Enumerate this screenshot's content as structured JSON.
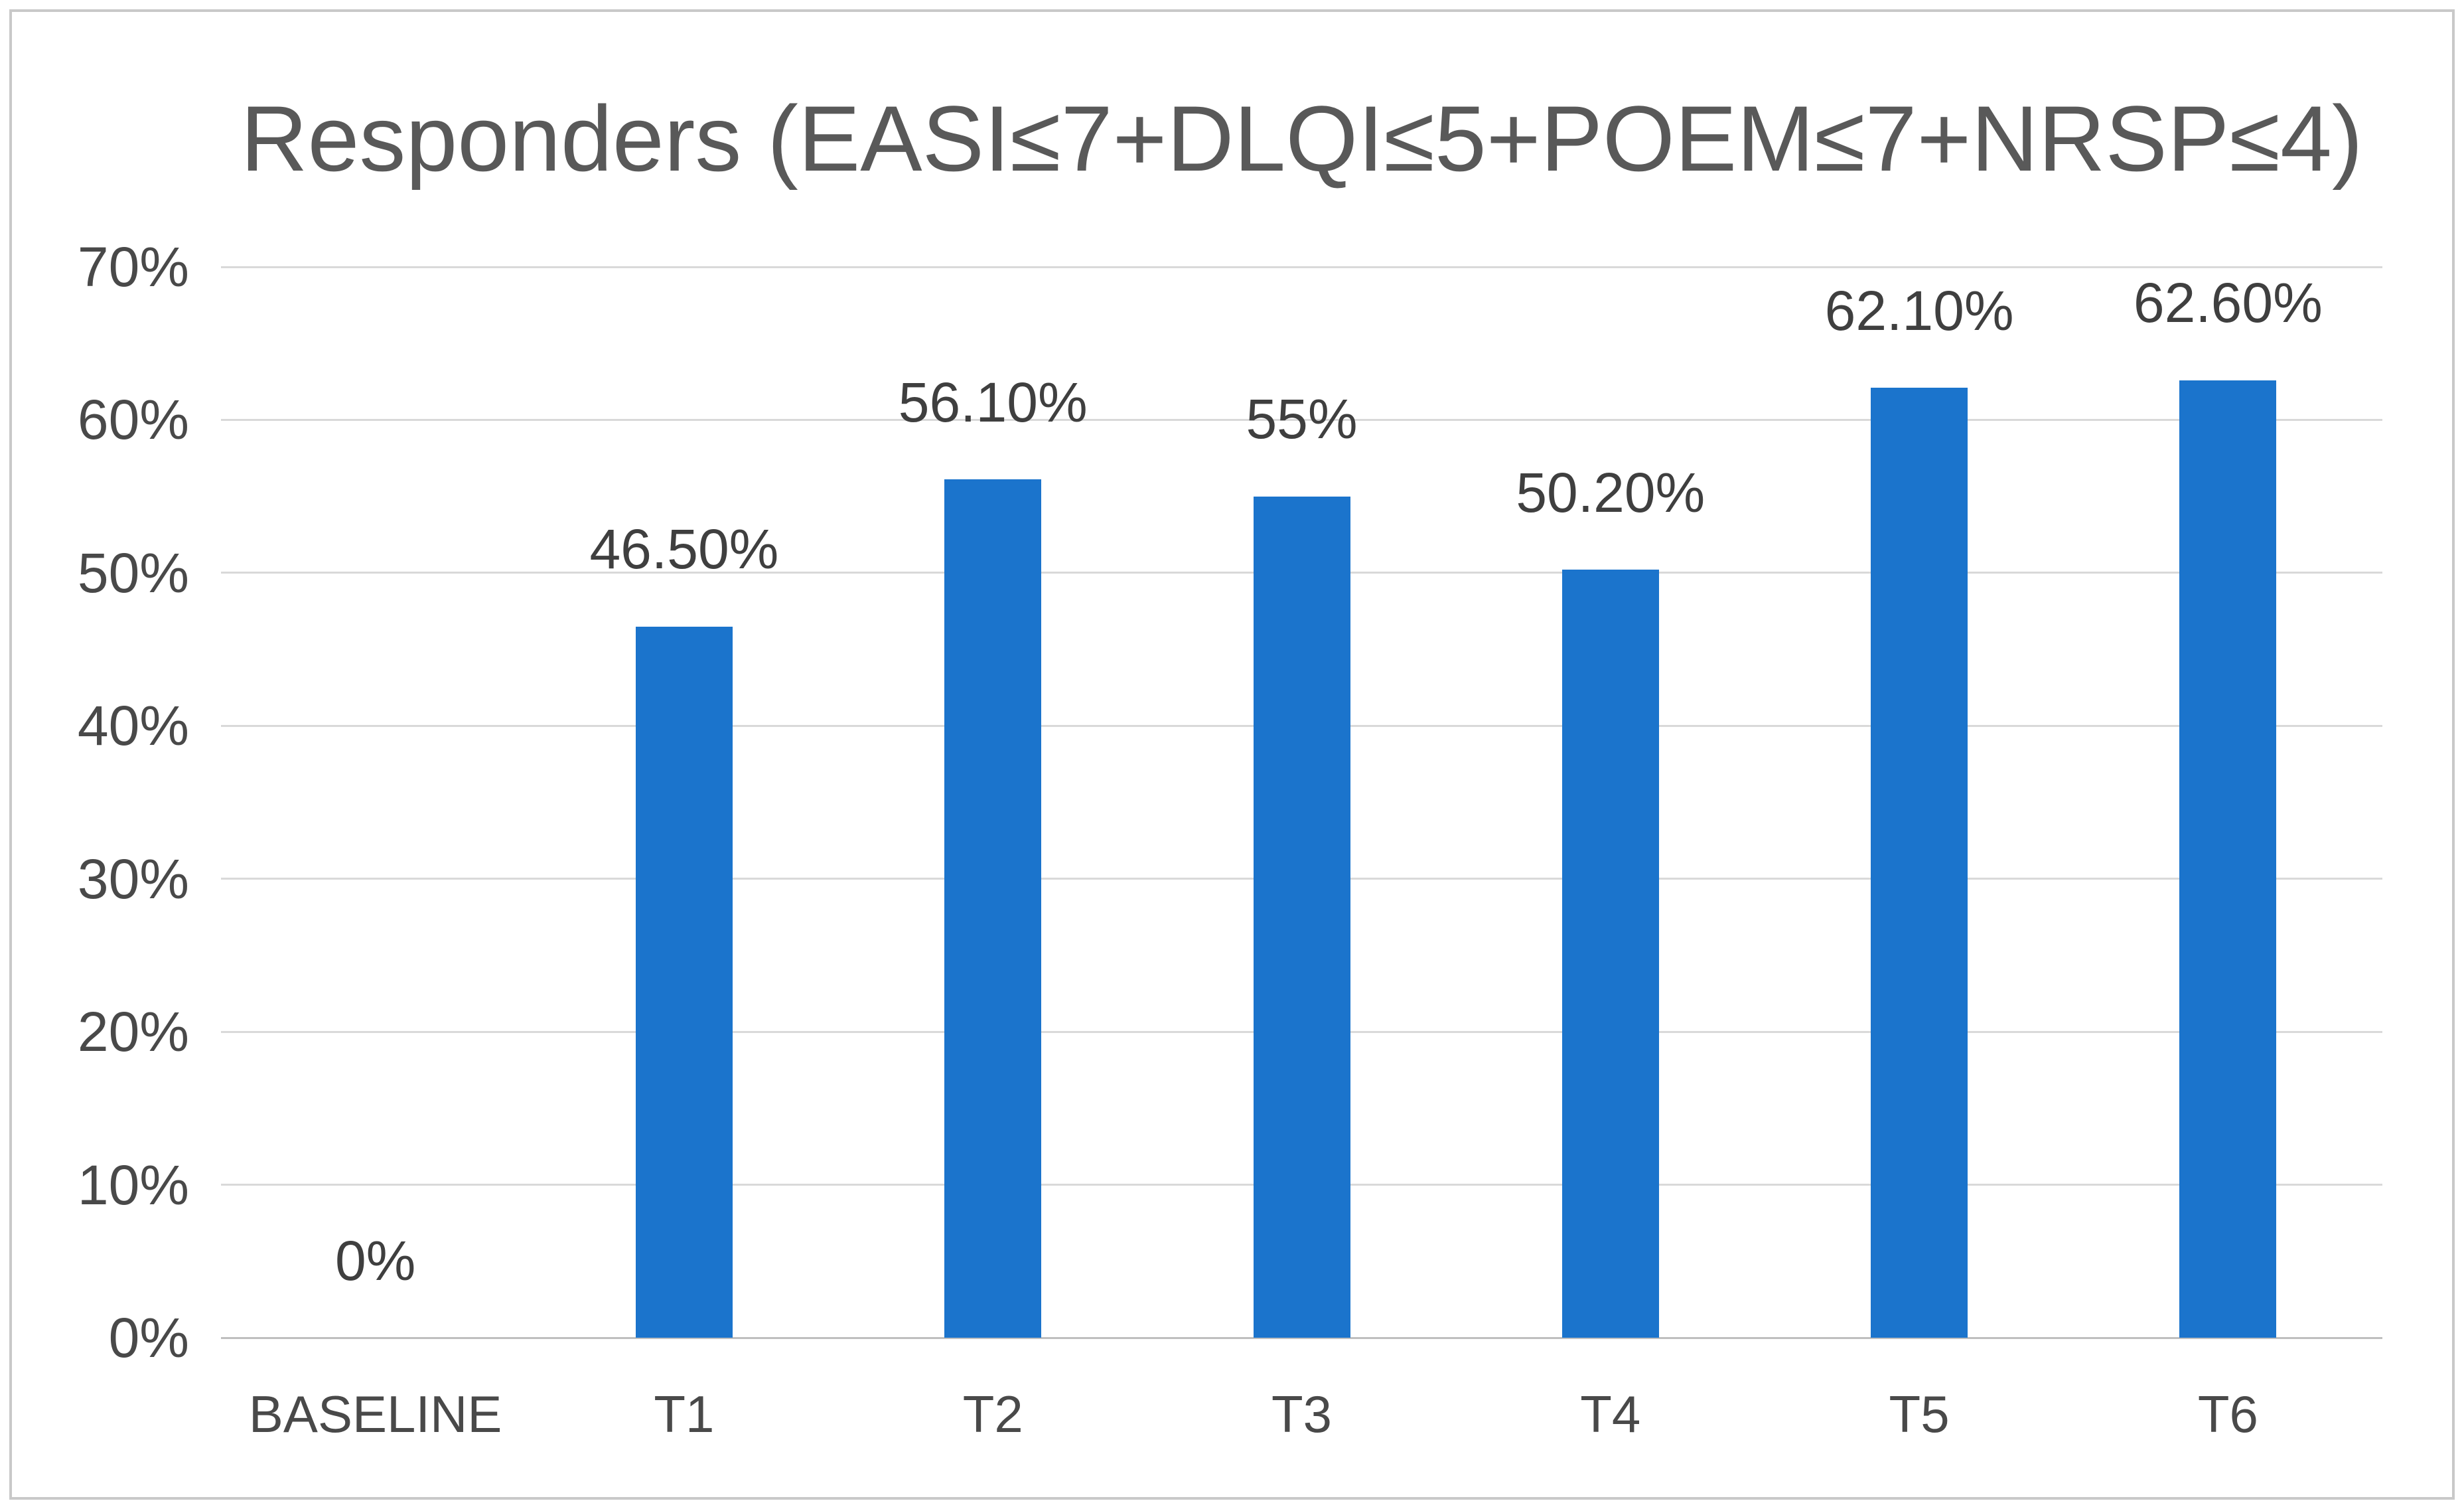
{
  "chart_data": {
    "type": "bar",
    "title": "Responders (EASI≤7+DLQI≤5+POEM≤7+NRSP≤4)",
    "categories": [
      "BASELINE",
      "T1",
      "T2",
      "T3",
      "T4",
      "T5",
      "T6"
    ],
    "values": [
      0,
      46.5,
      56.1,
      55,
      50.2,
      62.1,
      62.6
    ],
    "value_labels": [
      "0%",
      "46.50%",
      "56.10%",
      "55%",
      "50.20%",
      "62.10%",
      "62.60%"
    ],
    "yticks": [
      {
        "value": 0,
        "label": "0%"
      },
      {
        "value": 10,
        "label": "10%"
      },
      {
        "value": 20,
        "label": "20%"
      },
      {
        "value": 30,
        "label": "30%"
      },
      {
        "value": 40,
        "label": "40%"
      },
      {
        "value": 50,
        "label": "50%"
      },
      {
        "value": 60,
        "label": "60%"
      },
      {
        "value": 70,
        "label": "70%"
      }
    ],
    "ylim": [
      0,
      70
    ],
    "xlabel": "",
    "ylabel": "",
    "grid": true,
    "legend": false,
    "series_name": "Responders"
  },
  "colors": {
    "bar": "#1b74cc",
    "gridline": "#d9d9d9",
    "axis_line": "#bfbfbf",
    "title_text": "#595959",
    "tick_text": "#494949",
    "data_label_text": "#3f3f3f",
    "frame_border": "#c9c9c9",
    "background": "#ffffff"
  }
}
